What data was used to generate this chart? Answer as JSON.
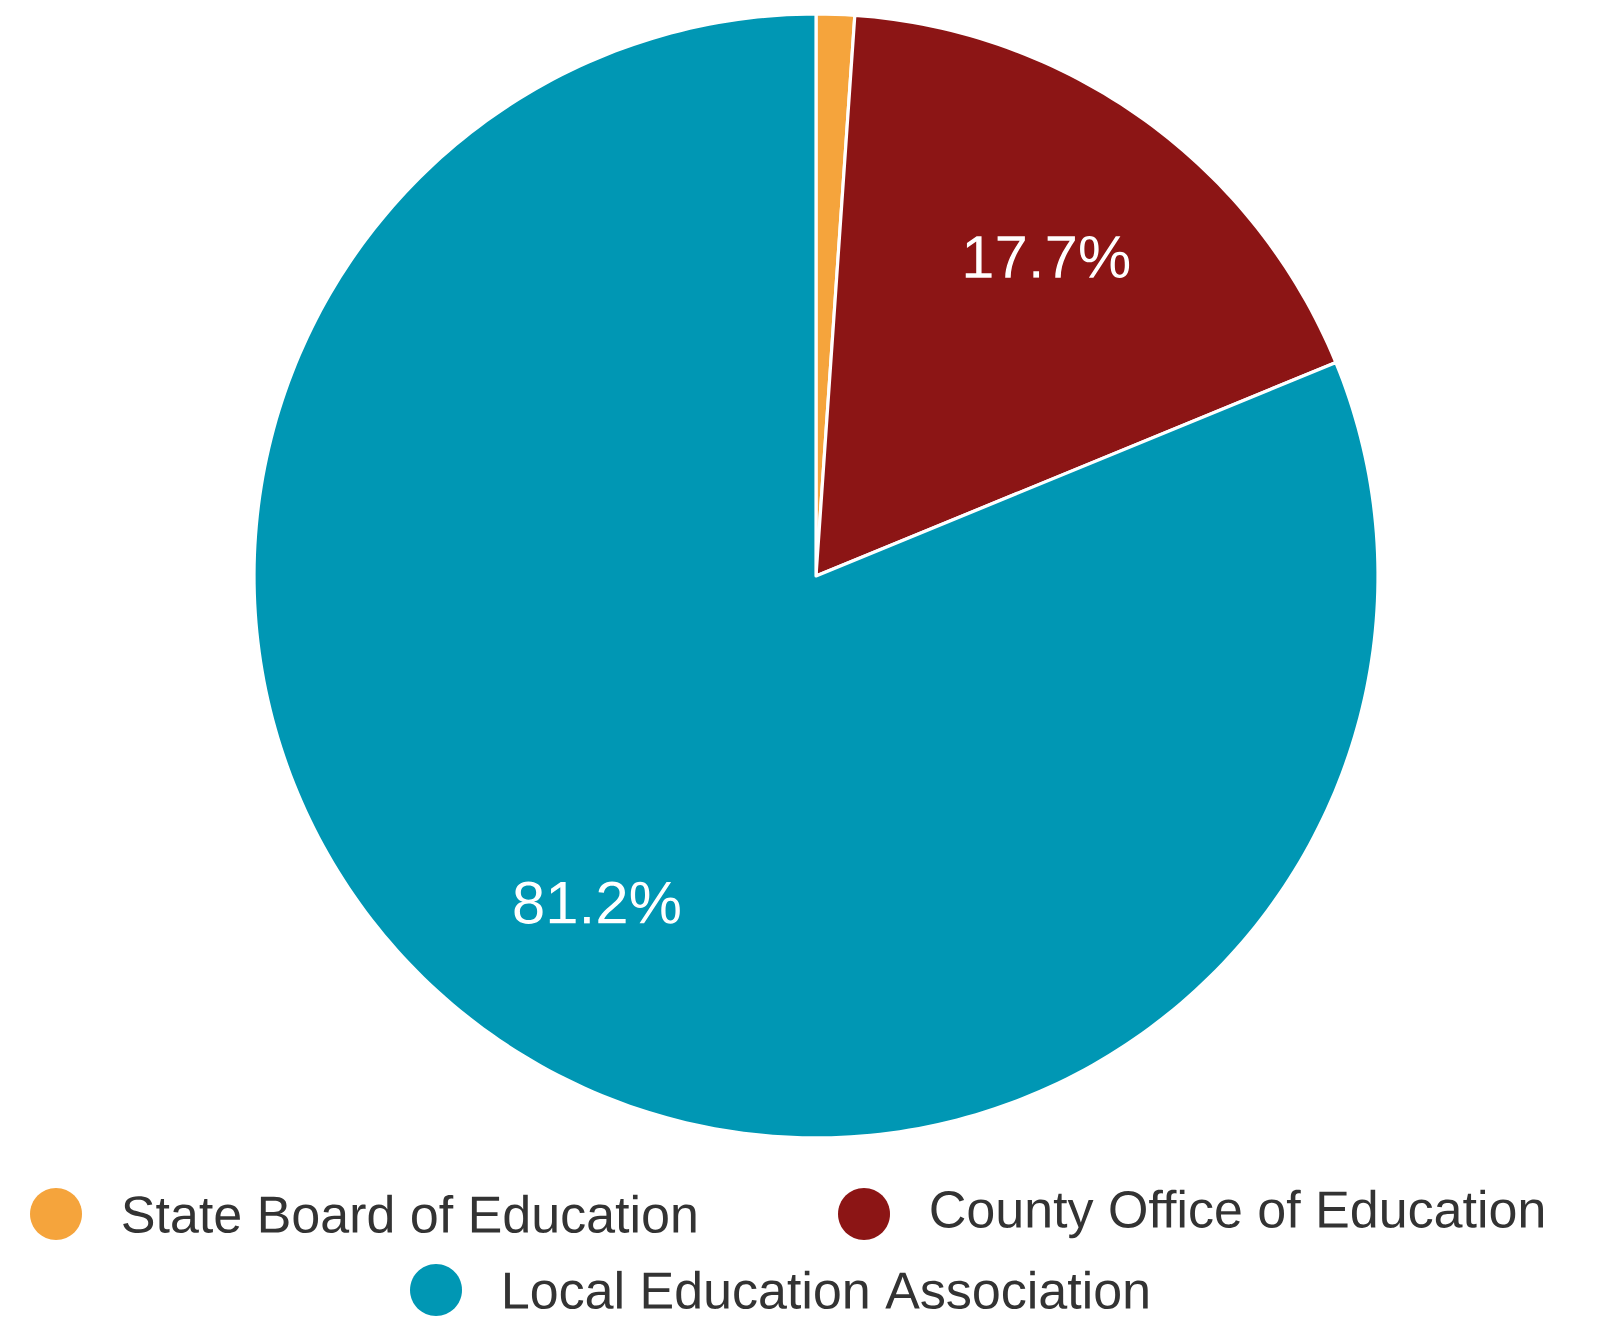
{
  "chart_data": {
    "type": "pie",
    "categories": [
      "State Board of Education",
      "County Office of Education",
      "Local Education Association"
    ],
    "values": [
      1.1,
      17.7,
      81.2
    ],
    "colors": [
      "#f5a43c",
      "#8c1515",
      "#0097b4"
    ],
    "value_labels": [
      null,
      "17.7%",
      "81.2%"
    ],
    "legend": "bottom"
  }
}
